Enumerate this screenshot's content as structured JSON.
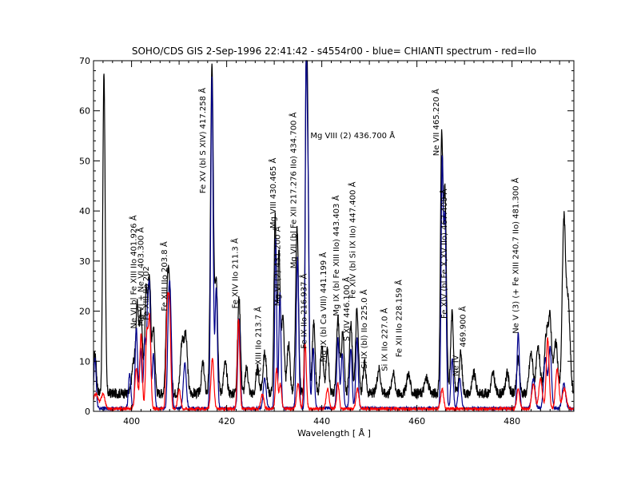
{
  "chart_data": {
    "type": "line",
    "title": "SOHO/CDS GIS   2-Sep-1996 22:41:42 - s4554r00 - blue= CHIANTI spectrum - red=Ilo",
    "xlabel": "Wavelength [ Å ]",
    "ylabel": "",
    "xlim": [
      392,
      493
    ],
    "ylim": [
      0,
      70
    ],
    "x_ticks": [
      400,
      420,
      440,
      460,
      480
    ],
    "y_ticks": [
      0,
      10,
      20,
      30,
      40,
      50,
      60,
      70
    ],
    "grid": false,
    "series": [
      {
        "color": "#000000",
        "baseline": 3.6,
        "noise": 1.0,
        "peaks": [
          [
            392.3,
            8,
            0.3
          ],
          [
            394.2,
            64,
            0.25
          ],
          [
            400.4,
            6,
            0.35
          ],
          [
            401.2,
            17,
            0.3
          ],
          [
            402.0,
            16,
            0.3
          ],
          [
            403.1,
            21,
            0.3
          ],
          [
            403.8,
            22,
            0.25
          ],
          [
            404.6,
            13,
            0.3
          ],
          [
            407.5,
            18,
            0.3
          ],
          [
            408.0,
            17,
            0.3
          ],
          [
            410.6,
            10,
            0.35
          ],
          [
            411.4,
            11,
            0.35
          ],
          [
            415.0,
            6,
            0.3
          ],
          [
            416.9,
            65,
            0.3
          ],
          [
            417.8,
            23,
            0.3
          ],
          [
            419.7,
            6,
            0.35
          ],
          [
            422.6,
            19,
            0.3
          ],
          [
            424.2,
            5,
            0.3
          ],
          [
            426.5,
            5,
            0.3
          ],
          [
            428.0,
            8,
            0.35
          ],
          [
            430.2,
            35,
            0.25
          ],
          [
            431.0,
            28,
            0.25
          ],
          [
            431.8,
            15,
            0.3
          ],
          [
            433.0,
            10,
            0.3
          ],
          [
            434.8,
            33,
            0.3
          ],
          [
            436.7,
            50,
            0.22
          ],
          [
            437.0,
            43,
            0.25
          ],
          [
            438.3,
            14,
            0.3
          ],
          [
            440.0,
            10,
            0.3
          ],
          [
            441.2,
            9,
            0.3
          ],
          [
            443.4,
            15,
            0.3
          ],
          [
            444.4,
            12,
            0.3
          ],
          [
            446.1,
            14,
            0.3
          ],
          [
            447.4,
            17,
            0.3
          ],
          [
            449.0,
            6,
            0.3
          ],
          [
            452.0,
            5,
            0.35
          ],
          [
            455.0,
            4,
            0.35
          ],
          [
            458.2,
            4,
            0.35
          ],
          [
            462.0,
            3,
            0.4
          ],
          [
            465.2,
            50,
            0.25
          ],
          [
            465.9,
            40,
            0.3
          ],
          [
            467.4,
            16,
            0.3
          ],
          [
            469.2,
            8,
            0.3
          ],
          [
            472.0,
            4,
            0.35
          ],
          [
            476.0,
            4,
            0.35
          ],
          [
            479.0,
            4,
            0.35
          ],
          [
            481.3,
            7,
            0.3
          ],
          [
            484.0,
            8,
            0.4
          ],
          [
            485.5,
            9,
            0.4
          ],
          [
            487.2,
            11,
            0.4
          ],
          [
            488.0,
            14,
            0.35
          ],
          [
            489.2,
            10,
            0.4
          ],
          [
            490.9,
            34,
            0.35
          ],
          [
            491.8,
            18,
            0.4
          ]
        ]
      },
      {
        "color": "#00008b",
        "baseline": 0.6,
        "noise": 0.3,
        "peaks": [
          [
            392.3,
            10,
            0.25
          ],
          [
            399.6,
            7,
            0.25
          ],
          [
            401.0,
            16,
            0.25
          ],
          [
            401.9,
            12,
            0.25
          ],
          [
            402.8,
            14,
            0.25
          ],
          [
            403.4,
            19,
            0.2
          ],
          [
            403.8,
            22,
            0.2
          ],
          [
            404.6,
            11,
            0.25
          ],
          [
            407.8,
            18,
            0.25
          ],
          [
            408.2,
            17,
            0.25
          ],
          [
            411.2,
            9,
            0.3
          ],
          [
            416.9,
            66,
            0.25
          ],
          [
            417.8,
            24,
            0.25
          ],
          [
            422.6,
            18,
            0.25
          ],
          [
            428.0,
            6,
            0.3
          ],
          [
            430.3,
            34,
            0.2
          ],
          [
            431.2,
            23,
            0.22
          ],
          [
            434.9,
            30,
            0.25
          ],
          [
            436.7,
            64,
            0.18
          ],
          [
            437.1,
            45,
            0.22
          ],
          [
            438.2,
            12,
            0.25
          ],
          [
            443.4,
            14,
            0.25
          ],
          [
            444.3,
            11,
            0.25
          ],
          [
            446.1,
            12,
            0.25
          ],
          [
            447.4,
            14,
            0.25
          ],
          [
            465.3,
            48,
            0.22
          ],
          [
            465.9,
            38,
            0.25
          ],
          [
            467.4,
            10,
            0.25
          ],
          [
            469.0,
            6,
            0.3
          ],
          [
            481.3,
            15,
            0.25
          ],
          [
            484.5,
            6,
            0.35
          ],
          [
            487.0,
            10,
            0.35
          ],
          [
            488.0,
            12,
            0.3
          ],
          [
            490.9,
            5,
            0.35
          ]
        ]
      },
      {
        "color": "#ff0000",
        "baseline": 0.5,
        "noise": 0.3,
        "peaks": [
          [
            392.5,
            3,
            0.5
          ],
          [
            394.0,
            3,
            0.4
          ],
          [
            401.0,
            8,
            0.3
          ],
          [
            402.0,
            15,
            0.25
          ],
          [
            403.2,
            15,
            0.25
          ],
          [
            403.8,
            18,
            0.25
          ],
          [
            407.5,
            19,
            0.25
          ],
          [
            408.0,
            19,
            0.25
          ],
          [
            410.0,
            4,
            0.3
          ],
          [
            417.0,
            10,
            0.3
          ],
          [
            422.5,
            18,
            0.25
          ],
          [
            427.5,
            3,
            0.3
          ],
          [
            430.5,
            8,
            0.25
          ],
          [
            431.3,
            5,
            0.25
          ],
          [
            435.0,
            5,
            0.3
          ],
          [
            436.5,
            13,
            0.25
          ],
          [
            441.2,
            4,
            0.3
          ],
          [
            443.4,
            5,
            0.25
          ],
          [
            447.5,
            4,
            0.3
          ],
          [
            465.3,
            4,
            0.3
          ],
          [
            481.3,
            4,
            0.3
          ],
          [
            484.5,
            5,
            0.35
          ],
          [
            486.0,
            6,
            0.35
          ],
          [
            487.5,
            14,
            0.3
          ],
          [
            489.5,
            8,
            0.35
          ],
          [
            491.0,
            4,
            0.4
          ]
        ]
      }
    ],
    "annotations": [
      {
        "text": "Ne VI bl Fe XIII IIo  401.926 Å",
        "x": 401.0,
        "y": 16.5
      },
      {
        "text": "Mg VI + Ne VI  403.300 Å",
        "x": 402.5,
        "y": 17.0
      },
      {
        "text": "Fe XIII IIo  202",
        "x": 403.6,
        "y": 18.2
      },
      {
        "text": "Fe XIII IIo  203.8 Å",
        "x": 407.5,
        "y": 20.0
      },
      {
        "text": "Fe XV (bl S XIV) 417.258 Å",
        "x": 415.5,
        "y": 43.5
      },
      {
        "text": "Fe XIV IIo  211.3 Å",
        "x": 422.3,
        "y": 20.5
      },
      {
        "text": "Fe XIII  IIo  213.7 Å",
        "x": 427.2,
        "y": 7.0
      },
      {
        "text": "Mg VIII  430.465 Å",
        "x": 430.3,
        "y": 36.5
      },
      {
        "text": "Mg VI (2)  431.200 Å",
        "x": 431.2,
        "y": 21.0
      },
      {
        "text": "Mg VII  (bl Fe XII 217.276 IIo)  434.700 Å",
        "x": 434.6,
        "y": 28.5
      },
      {
        "text": "Mg VIII (2)   436.700 Å",
        "x": 437.6,
        "y": 54.5,
        "horizontal": true
      },
      {
        "text": "Fe IX IIo 216.937 Å",
        "x": 436.8,
        "y": 12.5
      },
      {
        "text": "Mg IX (bl Ca VIII) 441.199 Å",
        "x": 440.9,
        "y": 9.8
      },
      {
        "text": "Mg IX (bl Fe XIII IIo) 443.403 Å",
        "x": 443.6,
        "y": 19.0
      },
      {
        "text": "S XIV  446.100 Å",
        "x": 445.8,
        "y": 14.0
      },
      {
        "text": "Fe XIV (bl  Si IX  IIo)  447.400 Å",
        "x": 447.0,
        "y": 22.5
      },
      {
        "text": "Si IX (bl) IIo 225.0 Å",
        "x": 449.5,
        "y": 8.5
      },
      {
        "text": "Si IX IIo  227.0 Å",
        "x": 453.8,
        "y": 8.0
      },
      {
        "text": "Fe XII IIo  228.159 Å",
        "x": 456.8,
        "y": 10.8
      },
      {
        "text": "Ne VII  465.220 Å",
        "x": 464.6,
        "y": 51.0
      },
      {
        "text": "Fe XIV (bl Fe X,XV IIo)  467.400 Å",
        "x": 466.3,
        "y": 18.5
      },
      {
        "text": "Ne IV",
        "x": 468.7,
        "y": 7.0
      },
      {
        "text": "469.900 Å",
        "x": 470.2,
        "y": 12.8
      },
      {
        "text": "Ne V (3) (+ Fe XIII 240.7 IIo) 481.300 Å",
        "x": 481.3,
        "y": 15.5
      }
    ]
  }
}
